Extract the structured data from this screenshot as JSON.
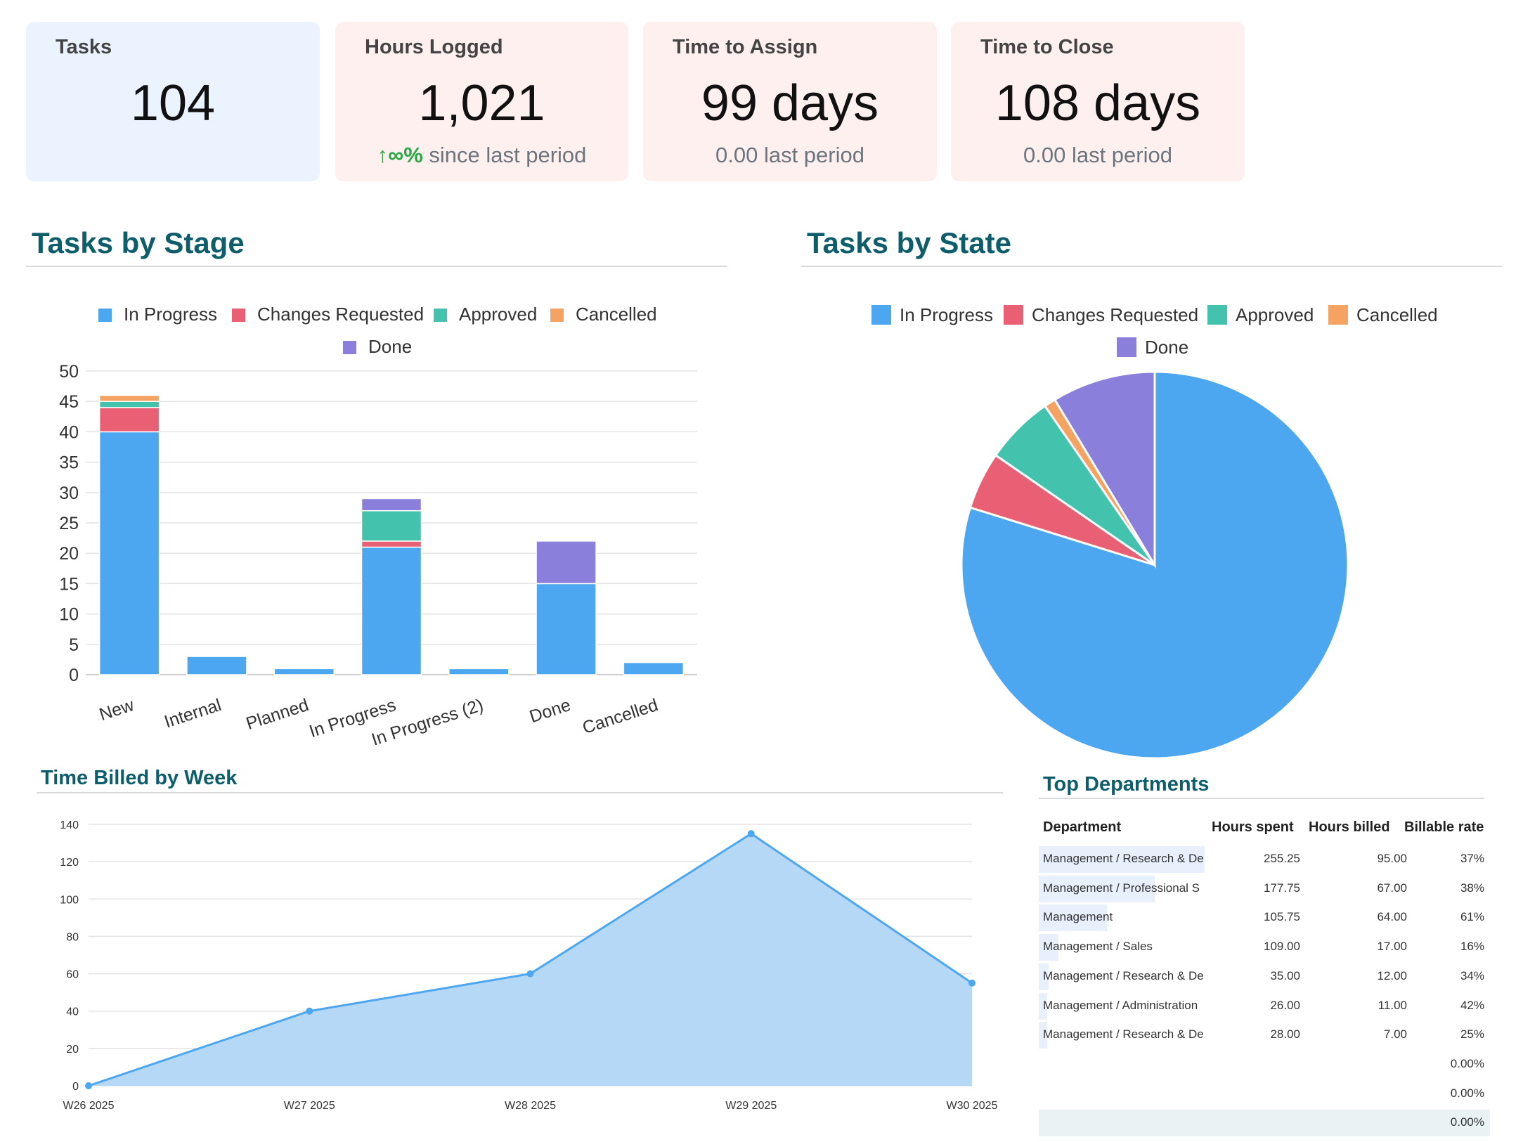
{
  "kpis": [
    {
      "title": "Tasks",
      "value": "104",
      "sub": "",
      "sub_trend": "",
      "bg": "#eaf3ff"
    },
    {
      "title": "Hours Logged",
      "value": "1,021",
      "sub_trend": "↑∞%",
      "sub": "since last period",
      "bg": "#fdf0ef"
    },
    {
      "title": "Time to Assign",
      "value": "99 days",
      "sub_trend": "",
      "sub": "0.00 last period",
      "bg": "#fdf0ef"
    },
    {
      "title": "Time to Close",
      "value": "108 days",
      "sub_trend": "",
      "sub": "0.00 last period",
      "bg": "#fdf0ef"
    }
  ],
  "sections": {
    "stage": "Tasks by Stage",
    "state": "Tasks by State",
    "time_billed": "Time Billed by Week",
    "departments": "Top Departments"
  },
  "colors": {
    "in_progress": "#4da6f0",
    "changes_requested": "#e95f74",
    "approved": "#43c3ad",
    "cancelled": "#f5a362",
    "done": "#8a80dc",
    "title": "#0d5d6b"
  },
  "chart_data": [
    {
      "type": "bar",
      "stacked": true,
      "categories": [
        "New",
        "Internal",
        "Planned",
        "In Progress",
        "In Progress (2)",
        "Done",
        "Cancelled"
      ],
      "series": [
        {
          "name": "In Progress",
          "color": "#4da6f0",
          "values": [
            40,
            3,
            1,
            21,
            1,
            15,
            2
          ]
        },
        {
          "name": "Changes Requested",
          "color": "#e95f74",
          "values": [
            4,
            0,
            0,
            1,
            0,
            0,
            0
          ]
        },
        {
          "name": "Approved",
          "color": "#43c3ad",
          "values": [
            1,
            0,
            0,
            5,
            0,
            0,
            0
          ]
        },
        {
          "name": "Cancelled",
          "color": "#f5a362",
          "values": [
            1,
            0,
            0,
            0,
            0,
            0,
            0
          ]
        },
        {
          "name": "Done",
          "color": "#8a80dc",
          "values": [
            0,
            0,
            0,
            2,
            0,
            7,
            0
          ]
        }
      ],
      "ylim": [
        0,
        50
      ],
      "yticks": [
        0,
        5,
        10,
        15,
        20,
        25,
        30,
        35,
        40,
        45,
        50
      ],
      "grid": true,
      "legend": "top"
    },
    {
      "type": "pie",
      "labels": [
        "In Progress",
        "Changes Requested",
        "Approved",
        "Cancelled",
        "Done"
      ],
      "values": [
        83,
        5,
        6,
        1,
        9
      ],
      "colors": [
        "#4da6f0",
        "#e95f74",
        "#43c3ad",
        "#f5a362",
        "#8a80dc"
      ],
      "legend": "top"
    },
    {
      "type": "area",
      "x": [
        "W26 2025",
        "W27 2025",
        "W28 2025",
        "W29 2025",
        "W30 2025"
      ],
      "series": [
        {
          "values": [
            0,
            40,
            60,
            135,
            55
          ]
        }
      ],
      "ylim": [
        0,
        140
      ],
      "yticks": [
        0,
        20,
        40,
        60,
        80,
        100,
        120,
        140
      ],
      "grid": true
    }
  ],
  "departments": {
    "headers": [
      "Department",
      "Hours spent",
      "Hours billed",
      "Billable rate"
    ],
    "rows": [
      {
        "name": "Management / Research & De",
        "spent": "255.25",
        "billed": "95.00",
        "rate": "37%",
        "share": 1.0
      },
      {
        "name": "Management / Professional S",
        "spent": "177.75",
        "billed": "67.00",
        "rate": "38%",
        "share": 0.7
      },
      {
        "name": "Management",
        "spent": "105.75",
        "billed": "64.00",
        "rate": "61%",
        "share": 0.41
      },
      {
        "name": "Management / Sales",
        "spent": "109.00",
        "billed": "17.00",
        "rate": "16%",
        "share": 0.12
      },
      {
        "name": "Management / Research & De",
        "spent": "35.00",
        "billed": "12.00",
        "rate": "34%",
        "share": 0.06
      },
      {
        "name": "Management / Administration",
        "spent": "26.00",
        "billed": "11.00",
        "rate": "42%",
        "share": 0.05
      },
      {
        "name": "Management / Research & De",
        "spent": "28.00",
        "billed": "7.00",
        "rate": "25%",
        "share": 0.05
      },
      {
        "name": "",
        "spent": "",
        "billed": "",
        "rate": "0.00%",
        "share": 0
      },
      {
        "name": "",
        "spent": "",
        "billed": "",
        "rate": "0.00%",
        "share": 0
      },
      {
        "name": "",
        "spent": "",
        "billed": "",
        "rate": "0.00%",
        "share": 1.0,
        "highlight": true
      }
    ]
  }
}
